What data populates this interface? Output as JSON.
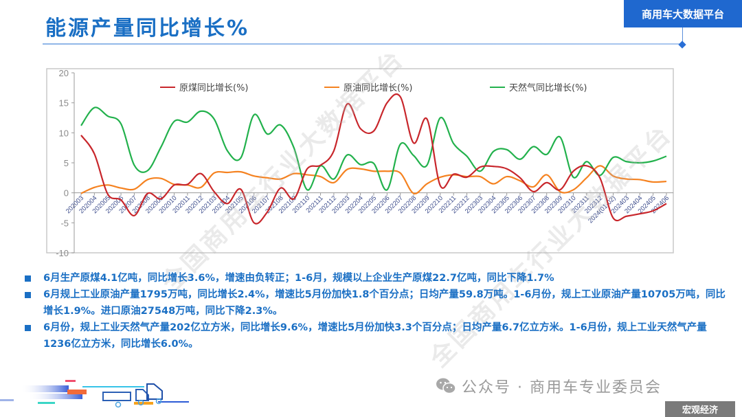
{
  "header": {
    "title": "能源产量同比增长%",
    "brand": "商用车大数据平台"
  },
  "watermarks": [
    "全国商用车行业大数据平台",
    "全国商用车行业大数据平台"
  ],
  "legend": [
    {
      "label": "原煤同比增长(%)",
      "color": "#c8262b"
    },
    {
      "label": "原油同比增长(%)",
      "color": "#f58220"
    },
    {
      "label": "天然气同比增长(%)",
      "color": "#22b14c"
    }
  ],
  "chart_data": {
    "type": "line",
    "title": "能源产量同比增长%",
    "xlabel": "",
    "ylabel": "",
    "ylim": [
      -10,
      20
    ],
    "yticks": [
      -10,
      -5,
      0,
      5,
      10,
      15,
      20
    ],
    "grid": false,
    "legend_position": "top",
    "categories": [
      "202003",
      "202004",
      "202005",
      "202006",
      "202007",
      "202008",
      "202009",
      "202010",
      "202011",
      "202012",
      "202103",
      "202104",
      "202105",
      "202106",
      "202107",
      "202108",
      "202109",
      "202110",
      "202111",
      "202112",
      "202203",
      "202204",
      "202205",
      "202206",
      "202207",
      "202208",
      "202209",
      "202210",
      "202211",
      "202212",
      "202303",
      "202304",
      "202305",
      "202306",
      "202307",
      "202308",
      "202309",
      "202310",
      "202311",
      "202312",
      "2024(01-02)",
      "202403",
      "202404",
      "202405",
      "202406"
    ],
    "series": [
      {
        "name": "原煤同比增长(%)",
        "color": "#c8262b",
        "values": [
          9.6,
          6.5,
          -0.2,
          -1.2,
          -3.8,
          -0.1,
          -1.0,
          1.3,
          1.4,
          3.2,
          0.2,
          -1.8,
          0.6,
          -5.0,
          -3.2,
          0.8,
          -1.0,
          4.0,
          4.6,
          7.0,
          14.8,
          10.7,
          10.3,
          15.0,
          16.0,
          8.3,
          12.3,
          1.2,
          3.1,
          2.6,
          4.3,
          4.4,
          4.0,
          2.5,
          0.2,
          1.7,
          0.5,
          3.6,
          4.5,
          2.5,
          -4.2,
          -3.9,
          -3.5,
          -3.0,
          -1.8
        ]
      },
      {
        "name": "原油同比增长(%)",
        "color": "#f58220",
        "values": [
          -0.1,
          0.9,
          1.3,
          0.8,
          0.6,
          2.2,
          2.4,
          1.4,
          1.3,
          0.9,
          3.3,
          3.4,
          3.5,
          2.8,
          2.5,
          2.3,
          3.2,
          3.0,
          2.7,
          1.7,
          3.9,
          4.0,
          3.6,
          3.6,
          3.3,
          -0.1,
          1.5,
          2.6,
          3.0,
          2.7,
          2.7,
          1.5,
          2.7,
          2.0,
          1.0,
          3.0,
          0.2,
          0.5,
          2.5,
          4.5,
          2.8,
          2.3,
          2.2,
          1.8,
          1.9
        ]
      },
      {
        "name": "天然气同比增长(%)",
        "color": "#22b14c",
        "values": [
          11.2,
          14.2,
          12.8,
          11.5,
          4.6,
          3.7,
          7.6,
          11.9,
          11.8,
          13.6,
          12.3,
          7.0,
          5.8,
          13.0,
          9.8,
          11.3,
          7.5,
          0.5,
          4.5,
          2.3,
          6.3,
          4.7,
          4.9,
          0.5,
          8.1,
          6.2,
          4.6,
          12.5,
          8.2,
          6.1,
          3.6,
          6.9,
          7.2,
          5.6,
          7.7,
          6.4,
          9.3,
          2.6,
          5.2,
          2.9,
          5.9,
          5.2,
          5.0,
          5.3,
          6.1
        ]
      }
    ]
  },
  "bullets": [
    "6月生产原煤4.1亿吨，同比增长3.6%，增速由负转正；1-6月，规模以上企业生产原煤22.7亿吨，同比下降1.7%",
    "6月规上工业原油产量1795万吨，同比增长2.4%，增速比5月份加快1.8个百分点；日均产量59.8万吨。1-6月份，规上工业原油产量10705万吨，同比增长1.9%。进口原油27548万吨，同比下降2.3%。",
    "6月份，规上工业天然气产量202亿立方米，同比增长9.6%，增速比5月份加快3.3个百分点；日均产量6.7亿立方米。1-6月份，规上工业天然气产量1236亿立方米，同比增长6.0%。"
  ],
  "footer": {
    "wechat_icon": "wechat-icon",
    "wechat_label": "公众号 · 商用车专业委员会",
    "section_tag": "宏观经济"
  }
}
